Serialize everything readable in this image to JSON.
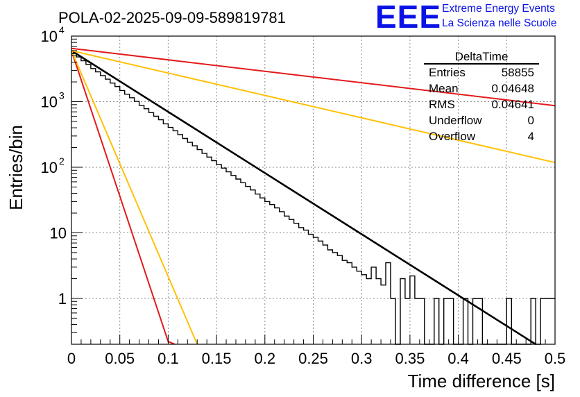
{
  "chart_data": {
    "type": "histogram",
    "title": "POLA-02-2025-09-09-589819781",
    "xlabel": "Time difference [s]",
    "ylabel": "Entries/bin",
    "xlim": [
      0,
      0.5
    ],
    "ylim": [
      0.2,
      10000
    ],
    "yscale": "log",
    "grid": true,
    "xticks": [
      "0",
      "0.05",
      "0.1",
      "0.15",
      "0.2",
      "0.25",
      "0.3",
      "0.35",
      "0.4",
      "0.45",
      "0.5"
    ],
    "xtick_values": [
      0,
      0.05,
      0.1,
      0.15,
      0.2,
      0.25,
      0.3,
      0.35,
      0.4,
      0.45,
      0.5
    ],
    "yticks": [
      {
        "value": 1,
        "label": "1"
      },
      {
        "value": 10,
        "label": "10"
      },
      {
        "value": 100,
        "label": "10",
        "exp": "2"
      },
      {
        "value": 1000,
        "label": "10",
        "exp": "3"
      },
      {
        "value": 10000,
        "label": "10",
        "exp": "4"
      }
    ],
    "histogram": {
      "name": "DeltaTime",
      "bin_width": 0.005,
      "color": "#000000",
      "values": [
        5400,
        4800,
        4200,
        3700,
        3200,
        2850,
        2500,
        2200,
        1920,
        1700,
        1480,
        1300,
        1150,
        1010,
        880,
        780,
        680,
        600,
        530,
        460,
        405,
        360,
        315,
        275,
        240,
        212,
        186,
        163,
        143,
        126,
        110,
        97,
        85,
        75,
        66,
        58,
        51,
        45,
        39,
        34,
        30,
        27,
        24,
        21,
        18,
        16,
        14,
        12,
        11,
        9.5,
        8.5,
        7.5,
        6.5,
        5.5,
        5,
        4.5,
        3.8,
        3.5,
        3,
        2.6,
        2.3,
        2,
        3,
        2,
        1.6,
        3.5,
        1,
        0.1,
        2,
        1,
        2.2,
        1,
        1,
        0.1,
        0.1,
        1,
        0.1,
        1,
        1,
        0.1,
        0.1,
        1,
        0.1,
        1,
        1,
        0.1,
        0.1,
        0.1,
        0.1,
        0.1,
        1,
        0.1,
        0.1,
        0.1,
        0.1,
        1,
        0.1,
        1,
        1,
        1
      ]
    },
    "fit_lines": [
      {
        "name": "fit",
        "color": "#000000",
        "points": [
          [
            0,
            6000
          ],
          [
            0.48,
            0.2
          ]
        ]
      },
      {
        "name": "steep-red",
        "color": "#e31a1c",
        "points": [
          [
            0,
            6000
          ],
          [
            0.1,
            0.22
          ],
          [
            0.107,
            0.2
          ]
        ]
      },
      {
        "name": "steep-yellow",
        "color": "#ffc107",
        "points": [
          [
            0,
            6000
          ],
          [
            0.13,
            0.2
          ]
        ]
      },
      {
        "name": "shallow-red",
        "color": "#e31a1c",
        "points": [
          [
            0,
            6500
          ],
          [
            0.5,
            870
          ]
        ]
      },
      {
        "name": "shallow-yellow",
        "color": "#ffc107",
        "points": [
          [
            0,
            6000
          ],
          [
            0.5,
            118
          ]
        ]
      }
    ]
  },
  "stats_box": {
    "title": "DeltaTime",
    "rows": [
      {
        "label": "Entries",
        "value": "58855"
      },
      {
        "label": "Mean",
        "value": "0.04648"
      },
      {
        "label": "RMS",
        "value": "0.04641"
      },
      {
        "label": "Underflow",
        "value": "0"
      },
      {
        "label": "Overflow",
        "value": "4"
      }
    ]
  },
  "logo": {
    "mark": "EEE",
    "line1": "Extreme Energy Events",
    "line2": "La Scienza nelle Scuole",
    "color": "#0a12e6"
  }
}
